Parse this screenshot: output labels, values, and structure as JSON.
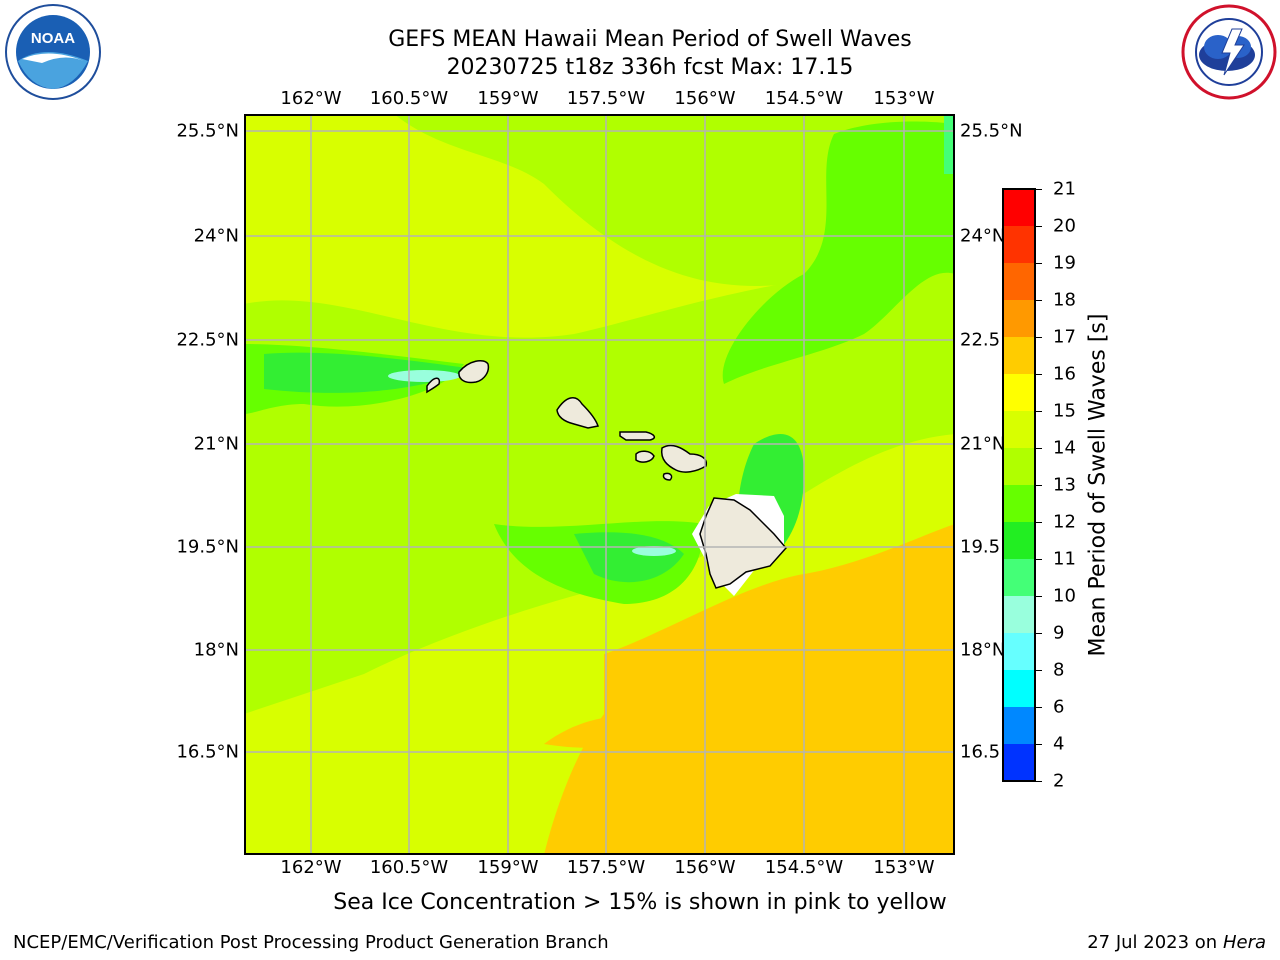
{
  "header": {
    "title_line1": "GEFS MEAN Hawaii Mean Period of Swell Waves",
    "title_line2": "20230725 t18z 336h fcst   Max: 17.15"
  },
  "logos": {
    "left": "noaa-logo",
    "right": "nws-logo"
  },
  "map": {
    "lon_ticks": [
      "162°W",
      "160.5°W",
      "159°W",
      "157.5°W",
      "156°W",
      "154.5°W",
      "153°W"
    ],
    "lat_ticks": [
      "25.5°N",
      "24°N",
      "22.5°N",
      "21°N",
      "19.5°N",
      "18°N",
      "16.5°N"
    ],
    "lat_ticks_right": [
      "25.5°N",
      "24°N",
      "22.5",
      "21°N",
      "19.5",
      "18°N",
      "16.5"
    ],
    "colors": {
      "field_base": "#d8ff00",
      "land": "#eeeadc",
      "grid": "#b4b4b4"
    }
  },
  "colorbar": {
    "label": "Mean Period of Swell Waves [s]",
    "ticks": [
      "21",
      "20",
      "19",
      "18",
      "17",
      "16",
      "15",
      "14",
      "13",
      "12",
      "11",
      "10",
      "9",
      "8",
      "6",
      "4",
      "2"
    ],
    "colors": [
      "#ff0000",
      "#ff3300",
      "#ff6600",
      "#ff9900",
      "#ffcc00",
      "#ffff00",
      "#d8ff00",
      "#b0ff00",
      "#66ff00",
      "#22ee22",
      "#44ff77",
      "#99ffdd",
      "#66ffff",
      "#00ffff",
      "#0088ff",
      "#0033ff"
    ]
  },
  "caption": "Sea Ice Concentration > 15% is shown in pink to yellow",
  "footer": {
    "left": "NCEP/EMC/Verification Post Processing Product Generation Branch",
    "date": "27 Jul 2023 on",
    "machine": "Hera"
  }
}
